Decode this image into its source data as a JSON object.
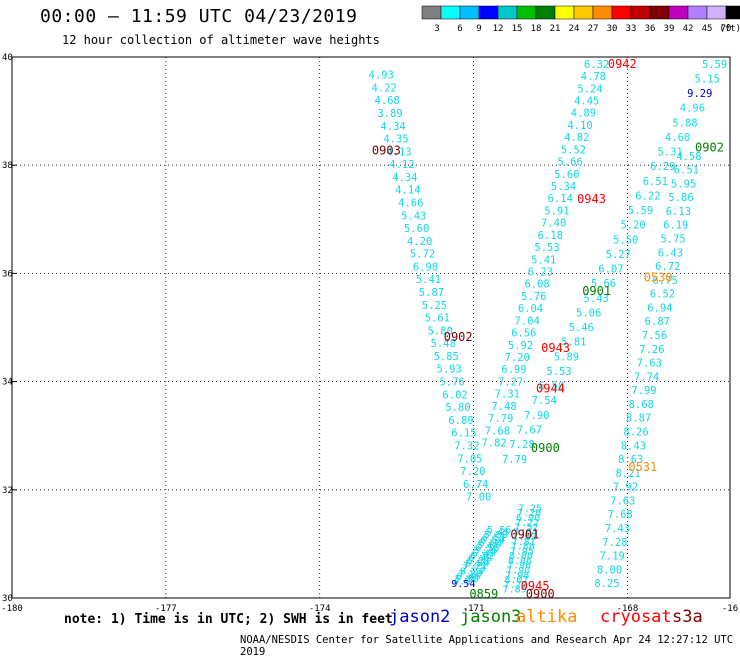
{
  "header": {
    "title": "00:00 – 11:59 UTC 04/23/2019",
    "subtitle": "12 hour collection of altimeter wave heights"
  },
  "scale": {
    "colors": [
      "#808080",
      "#00ffff",
      "#00bfff",
      "#0000ff",
      "#00c8c8",
      "#00c000",
      "#008000",
      "#ffff00",
      "#ffc800",
      "#ff8c00",
      "#ff0000",
      "#c00000",
      "#800000",
      "#c000c0",
      "#b080ff",
      "#d0b0ff",
      "#000000"
    ],
    "labels": [
      "3",
      "6",
      "9",
      "12",
      "15",
      "18",
      "21",
      "24",
      "27",
      "30",
      "33",
      "36",
      "39",
      "42",
      "45",
      "70"
    ],
    "unit": "(ft)"
  },
  "axes": {
    "lat_ticks": [
      "40",
      "38",
      "36",
      "34",
      "32",
      "30"
    ],
    "lon_ticks": [
      "-180",
      "-177",
      "-174",
      "-171",
      "-168",
      "-16"
    ]
  },
  "footer": {
    "note": "note:  1) Time is in UTC; 2) SWH is in feet",
    "credit": "NOAA/NESDIS Center for Satellite Applications and Research    Apr 24 12:27:12 UTC 2019",
    "satellites": [
      {
        "name": "jason2",
        "color": "#0000cc"
      },
      {
        "name": "jason3",
        "color": "#008000"
      },
      {
        "name": "altika",
        "color": "#ff8c00"
      },
      {
        "name": "cryosat",
        "color": "#ff0000"
      },
      {
        "name": "s3a",
        "color": "#800000"
      }
    ]
  },
  "chart_data": {
    "type": "map",
    "xlim": [
      -180,
      -166
    ],
    "ylim": [
      30,
      40
    ],
    "track_a_values": [
      "4.93",
      "4.22",
      "4.68",
      "3.89",
      "4.34",
      "4.35",
      "4.13",
      "4.12",
      "4.34",
      "4.14",
      "4.66",
      "5.43",
      "5.60",
      "4.20",
      "5.72",
      "6.98",
      "5.41",
      "5.87",
      "5.25",
      "5.61",
      "5.80",
      "5.48",
      "5.85",
      "5.93",
      "5.76",
      "6.02",
      "5.80",
      "6.89",
      "6.15",
      "7.32",
      "7.05",
      "7.20",
      "6.74",
      "7.00"
    ],
    "track_b_values": [
      "6.32",
      "4.78",
      "5.24",
      "4.45",
      "4.89",
      "4.10",
      "4.82",
      "5.52",
      "5.66",
      "5.60",
      "5.34",
      "6.14",
      "5.91",
      "7.40",
      "6.18",
      "5.53",
      "5.41",
      "6.23",
      "6.08",
      "5.76",
      "6.04",
      "7.04",
      "6.56",
      "5.92",
      "7.20",
      "6.99",
      "7.27",
      "7.31",
      "7.48",
      "7.79",
      "7.68",
      "7.82"
    ],
    "track_c_values": [
      "5.56",
      "5.45",
      "5.88",
      "6.51",
      "6.54",
      "6.04",
      "5.86",
      "6.58",
      "5.26",
      "6.49",
      "6.92",
      "6.48",
      "6.31",
      "6.84",
      "7.21",
      "7.73",
      "8.24",
      "7.80",
      "6.46",
      "5.80",
      "4.97",
      "9.54"
    ],
    "track_d_values": [
      "5.59",
      "5.15",
      "9.29",
      "4.96",
      "5.88",
      "4.60",
      "5.31",
      "6.29",
      "6.51",
      "6.22",
      "5.59",
      "5.20",
      "5.50",
      "5.27",
      "6.07",
      "5.66",
      "5.43",
      "5.06",
      "5.46",
      "5.81",
      "5.89",
      "5.53",
      "6.58",
      "7.54",
      "7.90",
      "7.67",
      "7.28",
      "7.79"
    ],
    "track_e_values": [
      "4.58",
      "6.51",
      "5.95",
      "5.86",
      "6.13",
      "6.19",
      "5.75",
      "6.43",
      "6.72",
      "6.75",
      "6.52",
      "6.94",
      "6.87",
      "7.56",
      "7.26",
      "7.63",
      "7.74",
      "7.99",
      "8.68",
      "8.87",
      "8.26",
      "8.43",
      "8.63",
      "8.21",
      "7.92",
      "7.63",
      "7.68",
      "7.43",
      "7.28",
      "7.19",
      "8.00",
      "8.25"
    ],
    "track_f_values": [
      "7.25",
      "7.20",
      "6.90",
      "7.22",
      "7.52",
      "7.64",
      "7.69",
      "7.81",
      "7.86",
      "7.95",
      "8.00",
      "8.06",
      "7.96",
      "7.90",
      "7.98",
      "8.07",
      "7.77",
      "7.89"
    ],
    "time_labels": [
      {
        "t": "0942",
        "lon": -168.1,
        "lat": 39.8,
        "color": "#ff0000"
      },
      {
        "t": "0903",
        "lon": -172.7,
        "lat": 38.2,
        "color": "#800000"
      },
      {
        "t": "0902",
        "lon": -166.4,
        "lat": 38.25,
        "color": "#008000"
      },
      {
        "t": "0943",
        "lon": -168.7,
        "lat": 37.3,
        "color": "#ff0000"
      },
      {
        "t": "0530",
        "lon": -167.4,
        "lat": 35.85,
        "color": "#ff8c00"
      },
      {
        "t": "0901",
        "lon": -168.6,
        "lat": 35.6,
        "color": "#008000"
      },
      {
        "t": "0902",
        "lon": -171.3,
        "lat": 34.75,
        "color": "#800000"
      },
      {
        "t": "0943",
        "lon": -169.4,
        "lat": 34.55,
        "color": "#ff0000"
      },
      {
        "t": "0944",
        "lon": -169.5,
        "lat": 33.8,
        "color": "#ff0000"
      },
      {
        "t": "0900",
        "lon": -169.6,
        "lat": 32.7,
        "color": "#008000"
      },
      {
        "t": "0531",
        "lon": -167.7,
        "lat": 32.35,
        "color": "#ff8c00"
      },
      {
        "t": "0901",
        "lon": -170.0,
        "lat": 31.1,
        "color": "#800000"
      },
      {
        "t": "0945",
        "lon": -169.8,
        "lat": 30.15,
        "color": "#ff0000"
      },
      {
        "t": "0900",
        "lon": -169.7,
        "lat": 30.0,
        "color": "#800000"
      },
      {
        "t": "0859",
        "lon": -170.8,
        "lat": 30.0,
        "color": "#008000"
      }
    ],
    "grid": true
  }
}
